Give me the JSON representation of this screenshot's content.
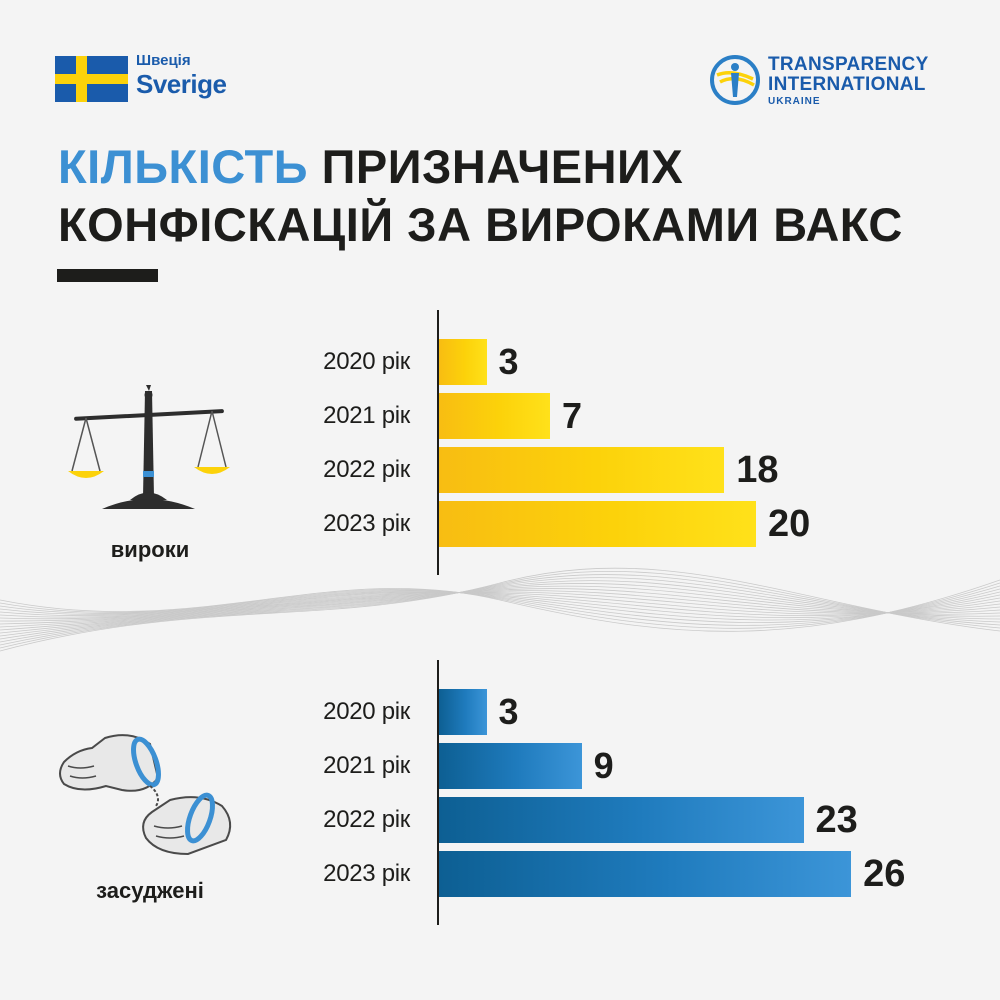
{
  "header": {
    "sweden": {
      "ua_label": "Швеція",
      "se_label": "Sverige",
      "flag_icon": "sweden-flag-icon"
    },
    "ti": {
      "line1": "TRANSPARENCY",
      "line2": "INTERNATIONAL",
      "line3": "UKRAINE",
      "emblem_icon": "ti-emblem-icon"
    }
  },
  "title": {
    "highlight": "КІЛЬКІСТЬ",
    "rest_line1": " ПРИЗНАЧЕНИХ",
    "line2": "КОНФІСКАЦІЙ ЗА ВИРОКАМИ ВАКС"
  },
  "colors": {
    "accent_blue": "#3c90d3",
    "brand_blue": "#1a5bab",
    "bar_yellow": "#fcd20a",
    "bar_blue": "#1f7bbd",
    "text_dark": "#1d1d1b"
  },
  "chart_data": [
    {
      "type": "bar",
      "orientation": "horizontal",
      "label": "вироки",
      "icon": "scales-of-justice-icon",
      "categories": [
        "2020 рік",
        "2021 рік",
        "2022 рік",
        "2023 рік"
      ],
      "values": [
        3,
        7,
        18,
        20
      ],
      "color": "#fcd20a",
      "xlim": [
        0,
        26
      ],
      "data_labels": true,
      "grid": false
    },
    {
      "type": "bar",
      "orientation": "horizontal",
      "label": "засуджені",
      "icon": "handcuffed-hands-icon",
      "categories": [
        "2020 рік",
        "2021 рік",
        "2022 рік",
        "2023 рік"
      ],
      "values": [
        3,
        9,
        23,
        26
      ],
      "color": "#1f7bbd",
      "xlim": [
        0,
        26
      ],
      "data_labels": true,
      "grid": false
    }
  ]
}
